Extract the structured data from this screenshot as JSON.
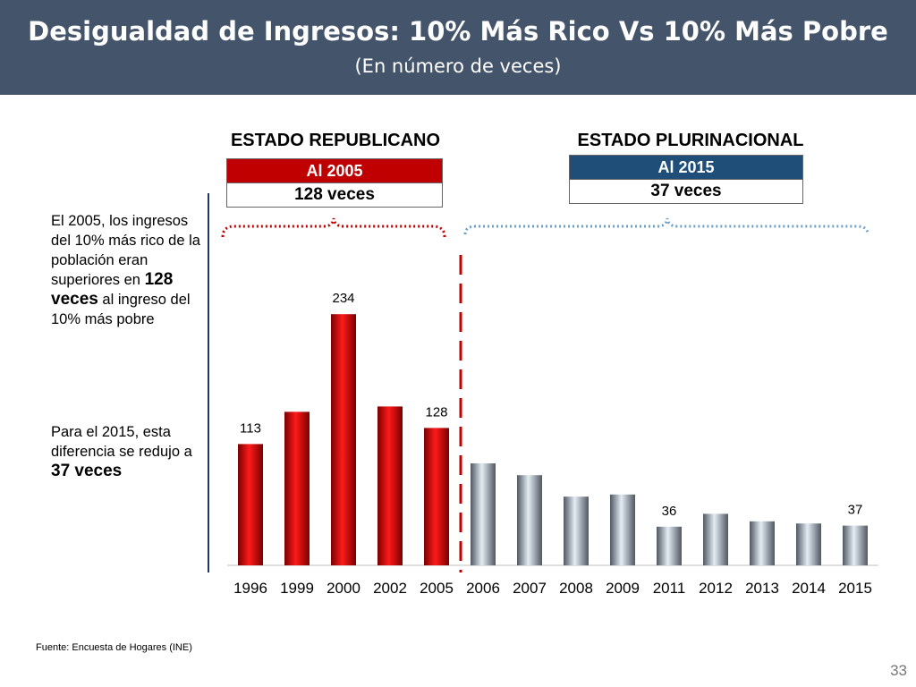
{
  "header": {
    "title": "Desigualdad de Ingresos: 10% Más Rico Vs 10% Más Pobre",
    "subtitle": "(En número de veces)"
  },
  "sections": {
    "left": {
      "title": "ESTADO REPUBLICANO",
      "box_top": "Al 2005",
      "box_bottom": "128 veces",
      "color": "#c00000"
    },
    "right": {
      "title": "ESTADO PLURINACIONAL",
      "box_top": "Al 2015",
      "box_bottom": "37 veces",
      "color": "#1f4e79"
    }
  },
  "notes": {
    "note1_a": "El 2005, los ingresos del 10% más rico de la población eran superiores en ",
    "note1_b": "128 veces",
    "note1_c": " al ingreso del 10% más pobre",
    "note2_a": "Para el 2015, esta diferencia se redujo a ",
    "note2_b": "37 veces"
  },
  "footer": {
    "source": "Fuente: Encuesta de Hogares (INE)",
    "page": "33"
  },
  "chart_data": {
    "type": "bar",
    "categories": [
      "1996",
      "1999",
      "2000",
      "2002",
      "2005",
      "2006",
      "2007",
      "2008",
      "2009",
      "2011",
      "2012",
      "2013",
      "2014",
      "2015"
    ],
    "values": [
      113,
      143,
      234,
      148,
      128,
      95,
      84,
      64,
      66,
      36,
      48,
      41,
      39,
      37
    ],
    "data_labels": {
      "1996": "113",
      "2000": "234",
      "2005": "128",
      "2011": "36",
      "2015": "37"
    },
    "groups": [
      {
        "name": "ESTADO REPUBLICANO",
        "categories": [
          "1996",
          "1999",
          "2000",
          "2002",
          "2005"
        ],
        "color": "#e00000"
      },
      {
        "name": "ESTADO PLURINACIONAL",
        "categories": [
          "2006",
          "2007",
          "2008",
          "2009",
          "2011",
          "2012",
          "2013",
          "2014",
          "2015"
        ],
        "color": "#b8c7d6"
      }
    ],
    "ylim": [
      0,
      290
    ],
    "grid": false,
    "title": "",
    "xlabel": "",
    "ylabel": ""
  }
}
